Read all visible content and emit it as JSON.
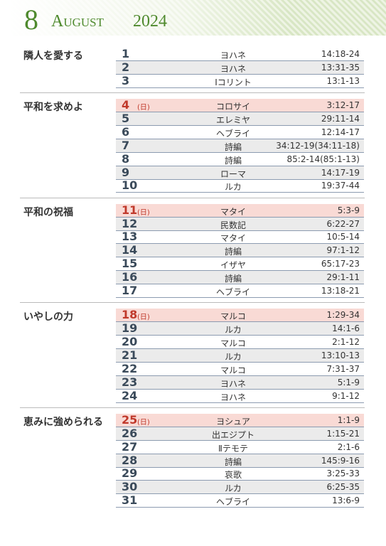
{
  "header": {
    "day": "8",
    "month": "August",
    "year": "2024"
  },
  "weeks": [
    {
      "title": "隣人を愛する",
      "days": [
        {
          "day": "1",
          "book": "ヨハネ",
          "ref": "14:18-24"
        },
        {
          "day": "2",
          "book": "ヨハネ",
          "ref": "13:31-35"
        },
        {
          "day": "3",
          "book": "Ⅰコリント",
          "ref": "13:1-13"
        }
      ]
    },
    {
      "title": "平和を求めよ",
      "days": [
        {
          "day": "4",
          "note": "(日)",
          "book": "コロサイ",
          "ref": "3:12-17"
        },
        {
          "day": "5",
          "book": "エレミヤ",
          "ref": "29:11-14"
        },
        {
          "day": "6",
          "book": "ヘブライ",
          "ref": "12:14-17"
        },
        {
          "day": "7",
          "book": "詩編",
          "ref": "34:12-19(34:11-18)"
        },
        {
          "day": "8",
          "book": "詩編",
          "ref": "85:2-14(85:1-13)"
        },
        {
          "day": "9",
          "book": "ローマ",
          "ref": "14:17-19"
        },
        {
          "day": "10",
          "book": "ルカ",
          "ref": "19:37-44"
        }
      ]
    },
    {
      "title": "平和の祝福",
      "days": [
        {
          "day": "11",
          "note": "(日)",
          "book": "マタイ",
          "ref": "5:3-9"
        },
        {
          "day": "12",
          "book": "民数記",
          "ref": "6:22-27"
        },
        {
          "day": "13",
          "book": "マタイ",
          "ref": "10:5-14"
        },
        {
          "day": "14",
          "book": "詩編",
          "ref": "97:1-12"
        },
        {
          "day": "15",
          "book": "イザヤ",
          "ref": "65:17-23"
        },
        {
          "day": "16",
          "book": "詩編",
          "ref": "29:1-11"
        },
        {
          "day": "17",
          "book": "ヘブライ",
          "ref": "13:18-21"
        }
      ]
    },
    {
      "title": "いやしの力",
      "days": [
        {
          "day": "18",
          "note": "(日)",
          "book": "マルコ",
          "ref": "1:29-34"
        },
        {
          "day": "19",
          "book": "ルカ",
          "ref": "14:1-6"
        },
        {
          "day": "20",
          "book": "マルコ",
          "ref": "2:1-12"
        },
        {
          "day": "21",
          "book": "ルカ",
          "ref": "13:10-13"
        },
        {
          "day": "22",
          "book": "マルコ",
          "ref": "7:31-37"
        },
        {
          "day": "23",
          "book": "ヨハネ",
          "ref": "5:1-9"
        },
        {
          "day": "24",
          "book": "ヨハネ",
          "ref": "9:1-12"
        }
      ]
    },
    {
      "title": "恵みに強められる",
      "days": [
        {
          "day": "25",
          "note": "(日)",
          "book": "ヨシュア",
          "ref": "1:1-9"
        },
        {
          "day": "26",
          "book": "出エジプト",
          "ref": "1:15-21"
        },
        {
          "day": "27",
          "book": "Ⅱテモテ",
          "ref": "2:1-6"
        },
        {
          "day": "28",
          "book": "詩編",
          "ref": "145:9-16"
        },
        {
          "day": "29",
          "book": "哀歌",
          "ref": "3:25-33"
        },
        {
          "day": "30",
          "book": "ルカ",
          "ref": "6:25-35"
        },
        {
          "day": "31",
          "book": "ヘブライ",
          "ref": "13:6-9"
        }
      ]
    }
  ]
}
